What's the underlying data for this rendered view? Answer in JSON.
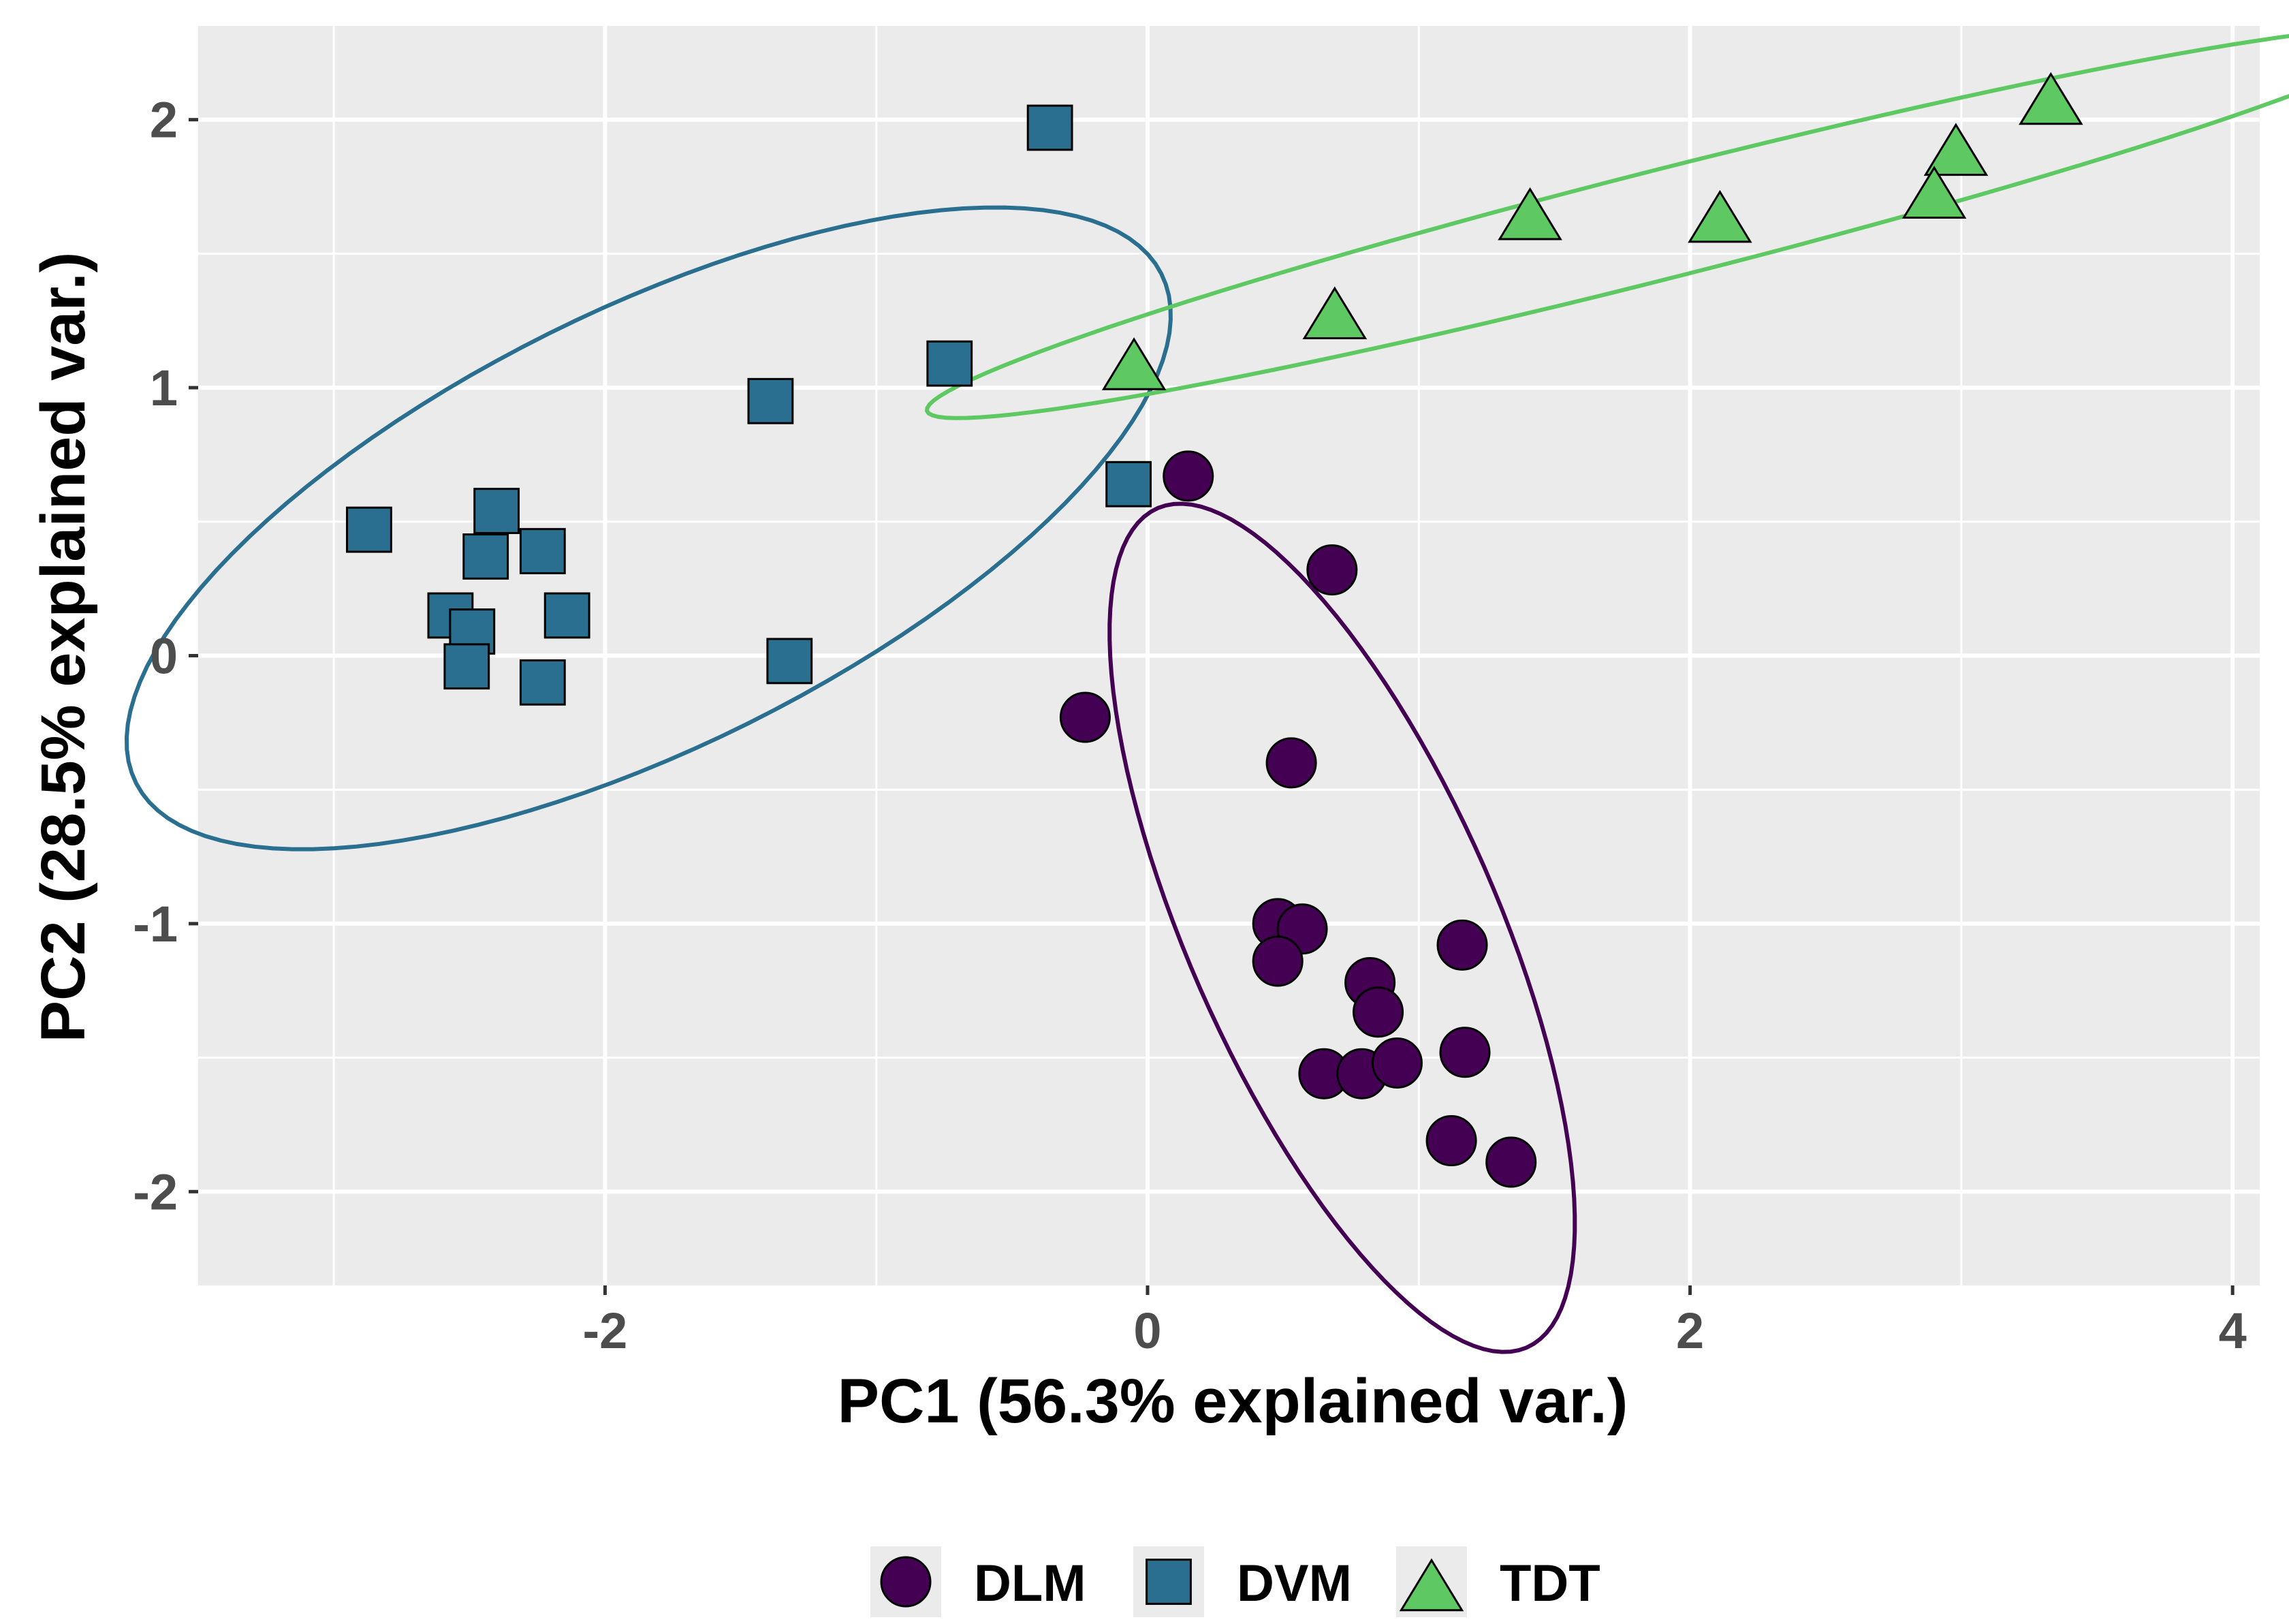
{
  "chart_data": {
    "type": "scatter",
    "xlabel": "PC1 (56.3% explained var.)",
    "ylabel": "PC2 (28.5% explained var.)",
    "xlim": [
      -3.5,
      4.1
    ],
    "ylim": [
      -2.35,
      2.35
    ],
    "xticks": [
      -2,
      0,
      2,
      4
    ],
    "yticks": [
      -2,
      -1,
      0,
      1,
      2
    ],
    "xtick_labels": [
      "-2",
      "0",
      "2",
      "4"
    ],
    "ytick_labels": [
      "-2",
      "-1",
      "0",
      "1",
      "2"
    ],
    "grid": true,
    "legend_position": "bottom",
    "ellipses": true,
    "series": [
      {
        "name": "DLM",
        "shape": "circle",
        "color": "#440154",
        "points": [
          [
            0.15,
            0.67
          ],
          [
            0.68,
            0.32
          ],
          [
            -0.23,
            -0.23
          ],
          [
            0.53,
            -0.4
          ],
          [
            0.48,
            -1.0
          ],
          [
            0.57,
            -1.02
          ],
          [
            1.16,
            -1.08
          ],
          [
            0.48,
            -1.14
          ],
          [
            0.82,
            -1.22
          ],
          [
            0.85,
            -1.33
          ],
          [
            0.65,
            -1.56
          ],
          [
            0.79,
            -1.56
          ],
          [
            0.92,
            -1.52
          ],
          [
            1.17,
            -1.48
          ],
          [
            1.12,
            -1.81
          ],
          [
            1.34,
            -1.89
          ]
        ]
      },
      {
        "name": "DVM",
        "shape": "square",
        "color": "#2a6f8f",
        "points": [
          [
            -0.36,
            1.97
          ],
          [
            -0.73,
            1.09
          ],
          [
            -1.39,
            0.95
          ],
          [
            -0.07,
            0.64
          ],
          [
            -2.87,
            0.47
          ],
          [
            -2.4,
            0.54
          ],
          [
            -2.44,
            0.37
          ],
          [
            -2.23,
            0.39
          ],
          [
            -2.57,
            0.15
          ],
          [
            -2.49,
            0.09
          ],
          [
            -2.14,
            0.15
          ],
          [
            -2.51,
            -0.04
          ],
          [
            -1.32,
            -0.02
          ],
          [
            -2.23,
            -0.1
          ]
        ]
      },
      {
        "name": "TDT",
        "shape": "triangle",
        "color": "#5ec962",
        "points": [
          [
            3.33,
            2.07
          ],
          [
            2.98,
            1.88
          ],
          [
            2.9,
            1.72
          ],
          [
            1.41,
            1.64
          ],
          [
            2.11,
            1.63
          ],
          [
            0.69,
            1.27
          ],
          [
            -0.05,
            1.08
          ]
        ]
      }
    ]
  }
}
